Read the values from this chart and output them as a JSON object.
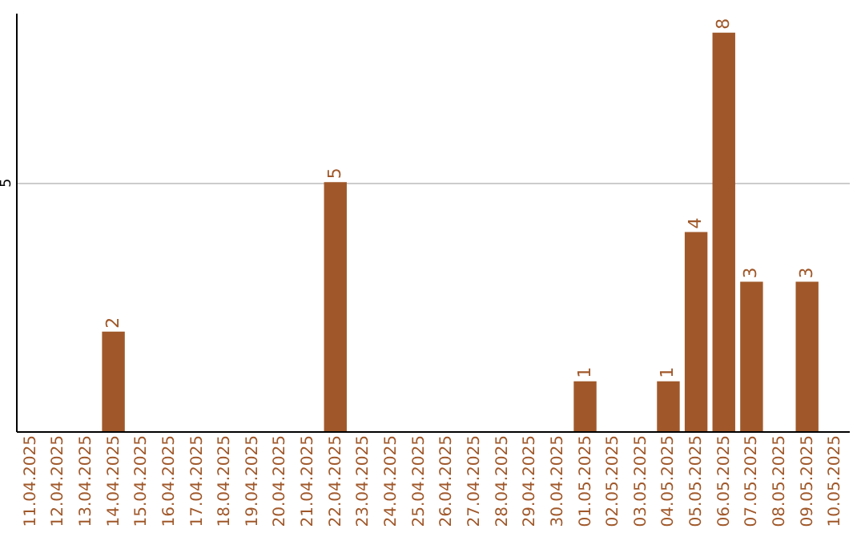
{
  "chart_data": {
    "type": "bar",
    "categories": [
      "11.04.2025",
      "12.04.2025",
      "13.04.2025",
      "14.04.2025",
      "15.04.2025",
      "16.04.2025",
      "17.04.2025",
      "18.04.2025",
      "19.04.2025",
      "20.04.2025",
      "21.04.2025",
      "22.04.2025",
      "23.04.2025",
      "24.04.2025",
      "25.04.2025",
      "26.04.2025",
      "27.04.2025",
      "28.04.2025",
      "29.04.2025",
      "30.04.2025",
      "01.05.2025",
      "02.05.2025",
      "03.05.2025",
      "04.05.2025",
      "05.05.2025",
      "06.05.2025",
      "07.05.2025",
      "08.05.2025",
      "09.05.2025",
      "10.05.2025"
    ],
    "values": [
      0,
      0,
      0,
      2,
      0,
      0,
      0,
      0,
      0,
      0,
      0,
      5,
      0,
      0,
      0,
      0,
      0,
      0,
      0,
      0,
      1,
      0,
      0,
      1,
      4,
      8,
      3,
      0,
      3,
      0
    ],
    "color": "#a0582a",
    "value_labels": [
      null,
      null,
      null,
      "2",
      null,
      null,
      null,
      null,
      null,
      null,
      null,
      "5",
      null,
      null,
      null,
      null,
      null,
      null,
      null,
      null,
      "1",
      null,
      null,
      "1",
      "4",
      "8",
      "3",
      null,
      "3",
      null
    ],
    "ylim": [
      0,
      8.4
    ],
    "yticks": [
      5
    ],
    "grid": "y"
  }
}
